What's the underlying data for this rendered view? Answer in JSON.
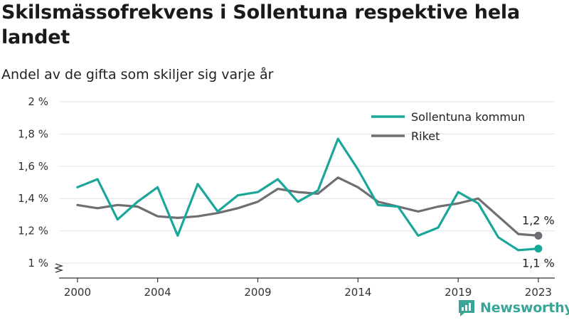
{
  "chart_data": {
    "type": "line",
    "title": "Skilsmässofrekvens i Sollentuna respektive hela landet",
    "subtitle": "Andel av de gifta som skiljer sig varje år",
    "x": [
      2000,
      2001,
      2002,
      2003,
      2004,
      2005,
      2006,
      2007,
      2008,
      2009,
      2010,
      2011,
      2012,
      2013,
      2014,
      2015,
      2016,
      2017,
      2018,
      2019,
      2020,
      2021,
      2022,
      2023
    ],
    "x_tick_labels": [
      "2000",
      "2004",
      "2009",
      "2014",
      "2019",
      "2023"
    ],
    "y_tick_labels": [
      "1 %",
      "1,2 %",
      "1,4 %",
      "1,6 %",
      "1,8 %",
      "2 %"
    ],
    "ylim": [
      1.0,
      2.0
    ],
    "y_axis_break": true,
    "grid": true,
    "legend_position": "top-right",
    "series": [
      {
        "name": "Sollentuna kommun",
        "color": "#1aa79a",
        "values": [
          1.47,
          1.52,
          1.27,
          1.38,
          1.47,
          1.17,
          1.49,
          1.32,
          1.42,
          1.44,
          1.52,
          1.38,
          1.45,
          1.77,
          1.58,
          1.36,
          1.35,
          1.17,
          1.22,
          1.44,
          1.37,
          1.16,
          1.08,
          1.09
        ],
        "end_label": "1,1 %"
      },
      {
        "name": "Riket",
        "color": "#6e6e73",
        "values": [
          1.36,
          1.34,
          1.36,
          1.35,
          1.29,
          1.28,
          1.29,
          1.31,
          1.34,
          1.38,
          1.46,
          1.44,
          1.43,
          1.53,
          1.47,
          1.38,
          1.35,
          1.32,
          1.35,
          1.37,
          1.4,
          1.29,
          1.18,
          1.17
        ],
        "end_label": "1,2 %"
      }
    ]
  },
  "brand": {
    "name": "Newsworthy",
    "icon": "newsworthy-logo-icon",
    "color": "#3aa597"
  }
}
